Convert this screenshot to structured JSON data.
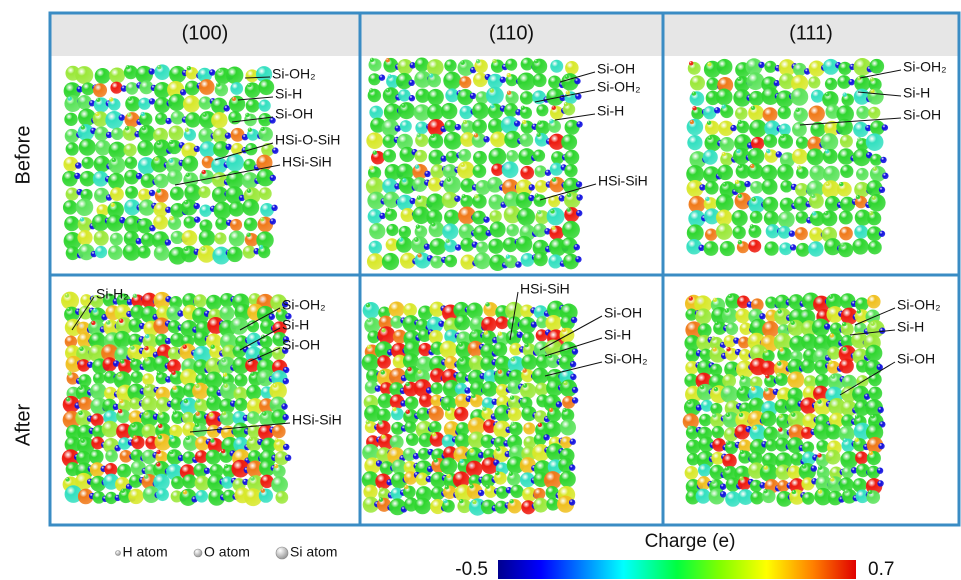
{
  "header": {
    "columns": [
      "(100)",
      "(110)",
      "(111)"
    ]
  },
  "rows": [
    "Before",
    "After"
  ],
  "panels": [
    {
      "labels": [
        "Si-OH₂",
        "Si-H",
        "Si-OH",
        "HSi-O-SiH",
        "HSi-SiH"
      ]
    },
    {
      "labels": [
        "Si-OH",
        "Si-OH₂",
        "Si-H",
        "HSi-SiH"
      ]
    },
    {
      "labels": [
        "Si-OH₂",
        "Si-H",
        "Si-OH"
      ]
    },
    {
      "labels": [
        "Si-H₂",
        "Si-OH₂",
        "Si-H",
        "Si-OH",
        "HSi-SiH"
      ]
    },
    {
      "labels": [
        "HSi-SiH",
        "Si-OH",
        "Si-H",
        "Si-OH₂"
      ]
    },
    {
      "labels": [
        "Si-OH₂",
        "Si-H",
        "Si-OH"
      ]
    }
  ],
  "legend": {
    "items": [
      "H atom",
      "O atom",
      "Si atom"
    ]
  },
  "colorbar": {
    "title": "Charge (e)",
    "min": -0.5,
    "max": 0.7
  }
}
